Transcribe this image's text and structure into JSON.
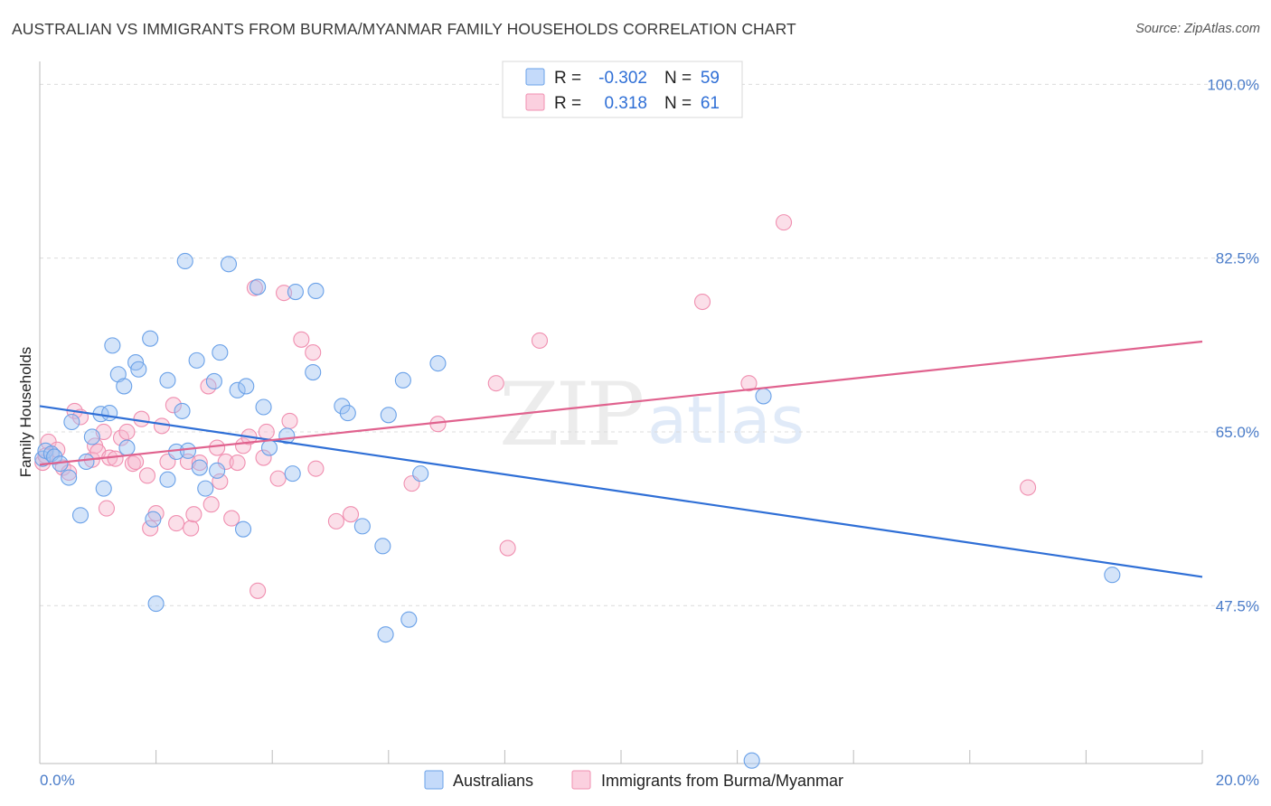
{
  "header": {
    "title": "AUSTRALIAN VS IMMIGRANTS FROM BURMA/MYANMAR FAMILY HOUSEHOLDS CORRELATION CHART",
    "source": "Source: ZipAtlas.com"
  },
  "watermark": {
    "zip": "ZIP",
    "atlas": "atlas"
  },
  "legend": {
    "r_label": "R =",
    "n_label": "N =",
    "rows": [
      {
        "r": "-0.302",
        "n": "59",
        "color": "#6aa1e8"
      },
      {
        "r": "0.318",
        "n": "61",
        "color": "#f08fb0"
      }
    ]
  },
  "chart_data": {
    "type": "scatter",
    "title": "AUSTRALIAN VS IMMIGRANTS FROM BURMA/MYANMAR FAMILY HOUSEHOLDS CORRELATION CHART",
    "xlabel": "",
    "ylabel": "Family Households",
    "xlim": [
      0,
      20
    ],
    "ylim": [
      31.6,
      101.4
    ],
    "x_tick_labels": [
      {
        "value": 0,
        "label": "0.0%"
      },
      {
        "value": 20,
        "label": "20.0%"
      }
    ],
    "y_tick_labels": [
      {
        "value": 100,
        "label": "100.0%"
      },
      {
        "value": 82.5,
        "label": "82.5%"
      },
      {
        "value": 65,
        "label": "65.0%"
      },
      {
        "value": 47.5,
        "label": "47.5%"
      }
    ],
    "series": [
      {
        "name": "Australians",
        "color": "#6aa1e8",
        "line_color": "#2f6fd6",
        "trend": {
          "x": [
            0,
            20
          ],
          "y": [
            67.6,
            50.4
          ]
        },
        "points": [
          [
            0.05,
            62.3
          ],
          [
            0.1,
            63.1
          ],
          [
            0.2,
            62.8
          ],
          [
            0.25,
            62.5
          ],
          [
            0.35,
            61.8
          ],
          [
            0.5,
            60.4
          ],
          [
            0.55,
            66.0
          ],
          [
            0.7,
            56.6
          ],
          [
            0.8,
            62.0
          ],
          [
            0.9,
            64.5
          ],
          [
            1.05,
            66.8
          ],
          [
            1.1,
            59.3
          ],
          [
            1.2,
            66.9
          ],
          [
            1.25,
            73.7
          ],
          [
            1.35,
            70.8
          ],
          [
            1.45,
            69.6
          ],
          [
            1.5,
            63.4
          ],
          [
            1.65,
            72.0
          ],
          [
            1.7,
            71.3
          ],
          [
            1.9,
            74.4
          ],
          [
            1.95,
            56.2
          ],
          [
            2.0,
            47.7
          ],
          [
            2.2,
            60.2
          ],
          [
            2.2,
            70.2
          ],
          [
            2.35,
            63.0
          ],
          [
            2.45,
            67.1
          ],
          [
            2.5,
            82.2
          ],
          [
            2.55,
            63.1
          ],
          [
            2.7,
            72.2
          ],
          [
            2.75,
            61.4
          ],
          [
            2.85,
            59.3
          ],
          [
            3.0,
            70.1
          ],
          [
            3.05,
            61.1
          ],
          [
            3.1,
            73.0
          ],
          [
            3.25,
            81.9
          ],
          [
            3.4,
            69.2
          ],
          [
            3.5,
            55.2
          ],
          [
            3.55,
            69.6
          ],
          [
            3.75,
            79.6
          ],
          [
            3.85,
            67.5
          ],
          [
            3.95,
            63.4
          ],
          [
            4.25,
            64.6
          ],
          [
            4.35,
            60.8
          ],
          [
            4.4,
            79.1
          ],
          [
            4.7,
            71.0
          ],
          [
            4.75,
            79.2
          ],
          [
            5.2,
            67.6
          ],
          [
            5.3,
            66.9
          ],
          [
            5.55,
            55.5
          ],
          [
            5.9,
            53.5
          ],
          [
            5.95,
            44.6
          ],
          [
            6.0,
            66.7
          ],
          [
            6.25,
            70.2
          ],
          [
            6.35,
            46.1
          ],
          [
            6.55,
            60.8
          ],
          [
            6.85,
            71.9
          ],
          [
            12.45,
            68.6
          ],
          [
            18.45,
            50.6
          ],
          [
            12.25,
            31.9
          ]
        ]
      },
      {
        "name": "Immigrants from Burma/Myanmar",
        "color": "#f08fb0",
        "line_color": "#e0628e",
        "trend": {
          "x": [
            0,
            20
          ],
          "y": [
            61.7,
            74.1
          ]
        },
        "points": [
          [
            0.05,
            61.9
          ],
          [
            0.15,
            64.0
          ],
          [
            0.3,
            63.2
          ],
          [
            0.4,
            61.4
          ],
          [
            0.5,
            60.9
          ],
          [
            0.6,
            67.1
          ],
          [
            0.7,
            66.5
          ],
          [
            0.9,
            62.2
          ],
          [
            0.95,
            63.6
          ],
          [
            1.0,
            63.0
          ],
          [
            1.1,
            65.0
          ],
          [
            1.15,
            57.3
          ],
          [
            1.2,
            62.4
          ],
          [
            1.3,
            62.3
          ],
          [
            1.4,
            64.4
          ],
          [
            1.5,
            65.0
          ],
          [
            1.6,
            61.8
          ],
          [
            1.65,
            62.0
          ],
          [
            1.75,
            66.3
          ],
          [
            1.85,
            60.6
          ],
          [
            1.9,
            55.3
          ],
          [
            2.0,
            56.8
          ],
          [
            2.1,
            65.6
          ],
          [
            2.2,
            62.0
          ],
          [
            2.3,
            67.7
          ],
          [
            2.35,
            55.8
          ],
          [
            2.55,
            62.0
          ],
          [
            2.6,
            55.3
          ],
          [
            2.65,
            56.7
          ],
          [
            2.75,
            61.9
          ],
          [
            2.9,
            69.6
          ],
          [
            2.95,
            57.7
          ],
          [
            3.05,
            63.4
          ],
          [
            3.1,
            60.0
          ],
          [
            3.2,
            62.0
          ],
          [
            3.3,
            56.3
          ],
          [
            3.4,
            61.9
          ],
          [
            3.5,
            63.6
          ],
          [
            3.6,
            64.5
          ],
          [
            3.7,
            79.5
          ],
          [
            3.75,
            49.0
          ],
          [
            3.85,
            62.4
          ],
          [
            3.9,
            65.0
          ],
          [
            4.1,
            60.3
          ],
          [
            4.2,
            79.0
          ],
          [
            4.3,
            66.1
          ],
          [
            4.5,
            74.3
          ],
          [
            4.7,
            73.0
          ],
          [
            4.75,
            61.3
          ],
          [
            5.1,
            56.0
          ],
          [
            5.35,
            56.7
          ],
          [
            6.4,
            59.8
          ],
          [
            6.85,
            65.8
          ],
          [
            7.85,
            69.9
          ],
          [
            8.05,
            53.3
          ],
          [
            8.6,
            74.2
          ],
          [
            11.4,
            78.1
          ],
          [
            12.2,
            69.9
          ],
          [
            12.8,
            86.1
          ],
          [
            17.0,
            59.4
          ],
          [
            0.1,
            62.6
          ]
        ]
      }
    ]
  },
  "bottom_legend": [
    {
      "label": "Australians",
      "color": "#6aa1e8"
    },
    {
      "label": "Immigrants from Burma/Myanmar",
      "color": "#f08fb0"
    }
  ]
}
